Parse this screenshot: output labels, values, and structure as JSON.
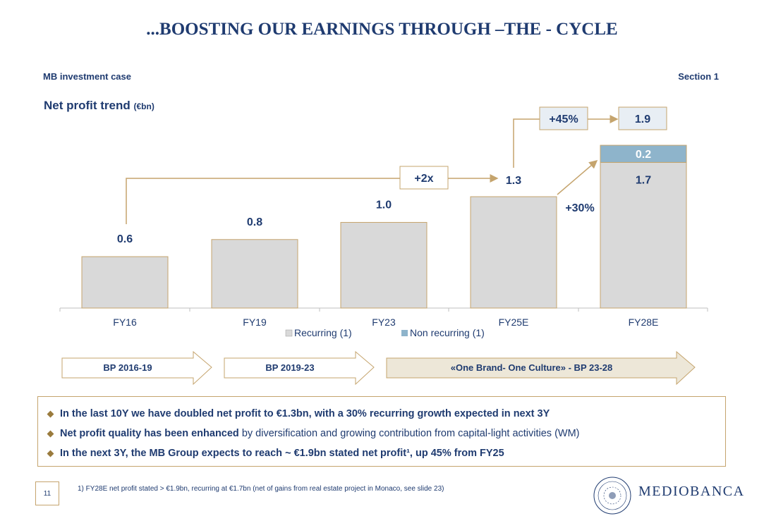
{
  "header": {
    "title": "...BOOSTING OUR EARNINGS THROUGH –THE - CYCLE",
    "section_left": "MB investment case",
    "section_right": "Section 1"
  },
  "chart_title": {
    "main": "Net profit trend",
    "unit": "(€bn)"
  },
  "chart_data": {
    "type": "bar",
    "stacked": true,
    "categories": [
      "FY16",
      "FY19",
      "FY23",
      "FY25E",
      "FY28E"
    ],
    "series": [
      {
        "name": "Recurring (1)",
        "values": [
          0.6,
          0.8,
          1.0,
          1.3,
          1.7
        ],
        "color": "#d9d9d9"
      },
      {
        "name": "Non recurring (1)",
        "values": [
          0,
          0,
          0,
          0,
          0.2
        ],
        "color": "#8eb4cb"
      }
    ],
    "data_labels": [
      "0.6",
      "0.8",
      "1.0",
      "1.3",
      "1.7",
      "0.2"
    ],
    "total_label_fy28": "1.9",
    "annotations": {
      "growth_2x": "+2x",
      "growth_45": "+45%",
      "growth_30": "+30%"
    },
    "ylim": [
      0,
      1.95
    ],
    "legend_placement": "bottom-center"
  },
  "plans": [
    {
      "label": "BP 2016-19"
    },
    {
      "label": "BP 2019-23"
    },
    {
      "label": "«One Brand- One Culture» - BP 23-28"
    }
  ],
  "bullets": [
    {
      "bold": "In the last 10Y we have doubled net profit to €1.3bn, with a 30% recurring growth expected in next 3Y",
      "normal": ""
    },
    {
      "bold": "Net profit quality has been enhanced",
      "normal": " by diversification and growing contribution from capital-light activities (WM)"
    },
    {
      "bold": "In the next 3Y, the MB Group expects to reach ~ €1.9bn stated net profit¹, up 45% from FY25",
      "normal": ""
    }
  ],
  "footer": {
    "page": "11",
    "footnote": "1) FY28E net profit stated > €1.9bn, recurring at €1.7bn (net of gains from real estate project in Monaco, see slide 23)",
    "logo": "MEDIOBANCA"
  },
  "colors": {
    "navy": "#1f3b70",
    "gold": "#c5a46d",
    "bar": "#d9d9d9",
    "nonrec": "#8eb4cb"
  }
}
